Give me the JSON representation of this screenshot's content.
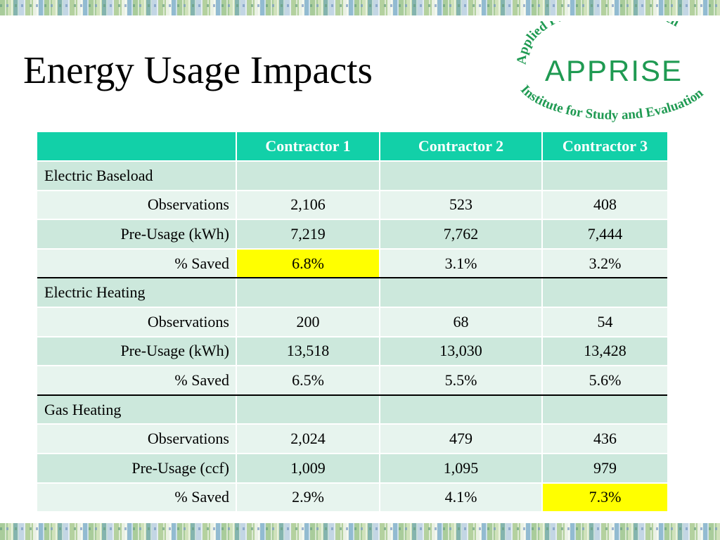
{
  "slide": {
    "title": "Energy Usage Impacts"
  },
  "logo": {
    "top_text": "Applied Public Policy Research",
    "brand": "APPRISE",
    "bottom_text": "Institute for Study and Evaluation",
    "color": "#1f9a52"
  },
  "table": {
    "headers": [
      "",
      "Contractor 1",
      "Contractor 2",
      "Contractor 3"
    ],
    "sections": [
      {
        "name": "Electric Baseload",
        "rows": [
          {
            "label": "Observations",
            "values": [
              "2,106",
              "523",
              "408"
            ]
          },
          {
            "label": "Pre-Usage (kWh)",
            "values": [
              "7,219",
              "7,762",
              "7,444"
            ]
          },
          {
            "label": "% Saved",
            "values": [
              "6.8%",
              "3.1%",
              "3.2%"
            ]
          }
        ]
      },
      {
        "name": "Electric Heating",
        "rows": [
          {
            "label": "Observations",
            "values": [
              "200",
              "68",
              "54"
            ]
          },
          {
            "label": "Pre-Usage (kWh)",
            "values": [
              "13,518",
              "13,030",
              "13,428"
            ]
          },
          {
            "label": "% Saved",
            "values": [
              "6.5%",
              "5.5%",
              "5.6%"
            ]
          }
        ]
      },
      {
        "name": "Gas Heating",
        "rows": [
          {
            "label": "Observations",
            "values": [
              "2,024",
              "479",
              "436"
            ]
          },
          {
            "label": "Pre-Usage (ccf)",
            "values": [
              "1,009",
              "1,095",
              "979"
            ]
          },
          {
            "label": "% Saved",
            "values": [
              "2.9%",
              "4.1%",
              "7.3%"
            ]
          }
        ]
      }
    ],
    "highlight_color": "#ffff00",
    "header_color": "#12d0a8"
  }
}
